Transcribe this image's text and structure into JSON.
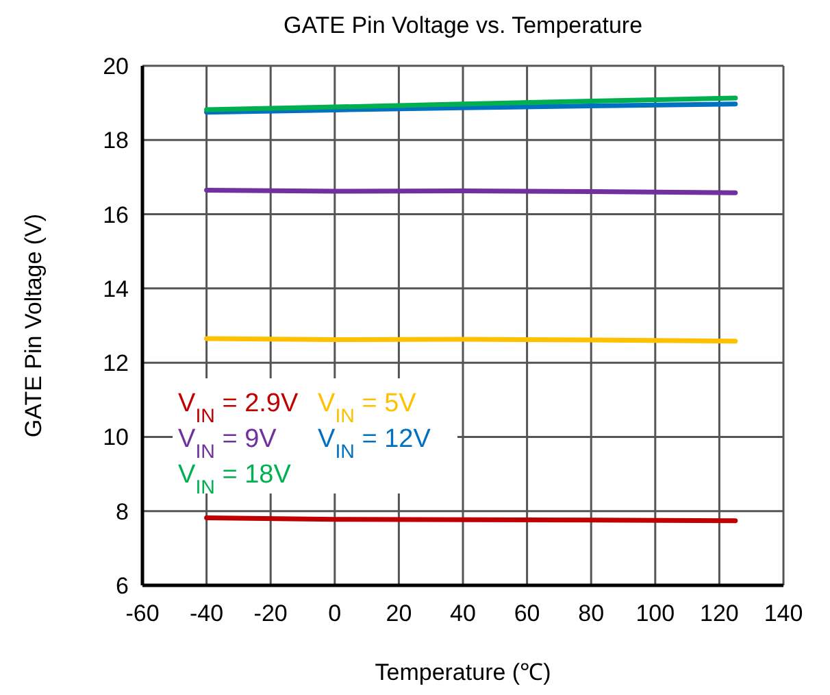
{
  "chart_data": {
    "type": "line",
    "title": "GATE Pin Voltage vs. Temperature",
    "xlabel": "Temperature (℃)",
    "ylabel": "GATE Pin Voltage (V)",
    "x": [
      -40,
      0,
      40,
      80,
      125
    ],
    "series": [
      {
        "name": "V$_{IN}$ = 2.9V",
        "color": "#c00000",
        "values": [
          7.82,
          7.78,
          7.77,
          7.76,
          7.74
        ]
      },
      {
        "name": "V$_{IN}$ = 5V",
        "color": "#ffc000",
        "values": [
          12.65,
          12.62,
          12.63,
          12.61,
          12.58
        ]
      },
      {
        "name": "V$_{IN}$ = 9V",
        "color": "#7030a0",
        "values": [
          16.65,
          16.62,
          16.63,
          16.61,
          16.58
        ]
      },
      {
        "name": "V$_{IN}$ = 12V",
        "color": "#0070c0",
        "values": [
          18.75,
          18.81,
          18.87,
          18.92,
          18.97
        ]
      },
      {
        "name": "V$_{IN}$ = 18V",
        "color": "#00b050",
        "values": [
          18.82,
          18.89,
          18.97,
          19.05,
          19.13
        ]
      }
    ],
    "xlim": [
      -60,
      140
    ],
    "xticks": [
      -60,
      -40,
      -20,
      0,
      20,
      40,
      60,
      80,
      100,
      120,
      140
    ],
    "ylim": [
      6,
      20
    ],
    "yticks": [
      6,
      8,
      10,
      12,
      14,
      16,
      18,
      20
    ],
    "grid": true,
    "legend": "bottom left",
    "marker": "none",
    "line_style": "solid"
  }
}
